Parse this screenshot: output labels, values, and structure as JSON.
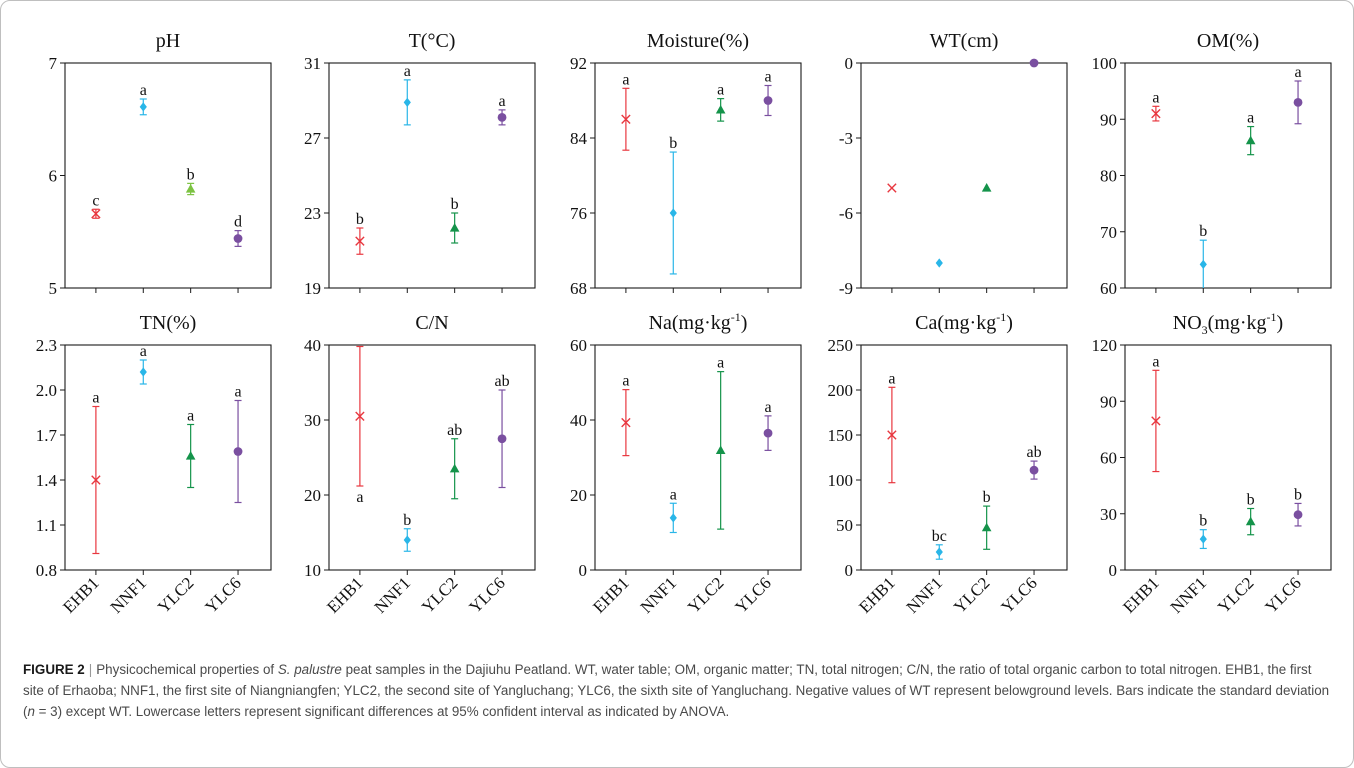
{
  "chart_data": [
    {
      "type": "scatter",
      "title": "pH",
      "title_sub": "",
      "ylim": [
        5,
        7
      ],
      "yticks": [
        5,
        6,
        7
      ],
      "ytick_labels": [
        "5",
        "6",
        "7"
      ],
      "categories": [
        "EHB1",
        "NNF1",
        "YLC2",
        "YLC6"
      ],
      "values": [
        5.66,
        6.61,
        5.88,
        5.44
      ],
      "errors": [
        0.04,
        0.07,
        0.05,
        0.07
      ],
      "letters": [
        "c",
        "a",
        "b",
        "d"
      ]
    },
    {
      "type": "scatter",
      "title": "T(°C)",
      "title_sub": "",
      "ylim": [
        19,
        31
      ],
      "yticks": [
        19,
        23,
        27,
        31
      ],
      "ytick_labels": [
        "19",
        "23",
        "27",
        "31"
      ],
      "categories": [
        "EHB1",
        "NNF1",
        "YLC2",
        "YLC6"
      ],
      "values": [
        21.5,
        28.9,
        22.2,
        28.1
      ],
      "errors": [
        0.7,
        1.2,
        0.8,
        0.4
      ],
      "letters": [
        "b",
        "a",
        "b",
        "a"
      ]
    },
    {
      "type": "scatter",
      "title": "Moisture(%)",
      "title_sub": "",
      "ylim": [
        68,
        92
      ],
      "yticks": [
        68,
        76,
        84,
        92
      ],
      "ytick_labels": [
        "68",
        "76",
        "84",
        "92"
      ],
      "categories": [
        "EHB1",
        "NNF1",
        "YLC2",
        "YLC6"
      ],
      "values": [
        86.0,
        76.0,
        87.0,
        88.0
      ],
      "errors": [
        3.3,
        6.5,
        1.2,
        1.6
      ],
      "letters": [
        "a",
        "b",
        "a",
        "a"
      ]
    },
    {
      "type": "scatter",
      "title": "WT(cm)",
      "title_sub": "",
      "ylim": [
        -9,
        0
      ],
      "yticks": [
        -9,
        -6,
        -3,
        0
      ],
      "ytick_labels": [
        "-9",
        "-6",
        "-3",
        "0"
      ],
      "categories": [
        "EHB1",
        "NNF1",
        "YLC2",
        "YLC6"
      ],
      "values": [
        -5,
        -8,
        -5,
        0
      ],
      "errors": [
        0,
        0,
        0,
        0
      ],
      "letters": [
        "",
        "",
        "",
        ""
      ]
    },
    {
      "type": "scatter",
      "title": "OM(%)",
      "title_sub": "",
      "ylim": [
        60,
        100
      ],
      "yticks": [
        60,
        70,
        80,
        90,
        100
      ],
      "ytick_labels": [
        "60",
        "70",
        "80",
        "90",
        "100"
      ],
      "categories": [
        "EHB1",
        "NNF1",
        "YLC2",
        "YLC6"
      ],
      "values": [
        91.0,
        64.2,
        86.2,
        93.0
      ],
      "errors": [
        1.3,
        4.3,
        2.5,
        3.8
      ],
      "letters": [
        "a",
        "b",
        "a",
        "a"
      ]
    },
    {
      "type": "scatter",
      "title": "TN(%)",
      "title_sub": "",
      "ylim": [
        0.8,
        2.3
      ],
      "yticks": [
        0.8,
        1.1,
        1.4,
        1.7,
        2.0,
        2.3
      ],
      "ytick_labels": [
        "0.8",
        "1.1",
        "1.4",
        "1.7",
        "2.0",
        "2.3"
      ],
      "categories": [
        "EHB1",
        "NNF1",
        "YLC2",
        "YLC6"
      ],
      "values": [
        1.4,
        2.12,
        1.56,
        1.59
      ],
      "errors": [
        0.49,
        0.08,
        0.21,
        0.34
      ],
      "letters": [
        "a",
        "a",
        "a",
        "a"
      ]
    },
    {
      "type": "scatter",
      "title": "C/N",
      "title_sub": "",
      "ylim": [
        10,
        40
      ],
      "yticks": [
        10,
        20,
        30,
        40
      ],
      "ytick_labels": [
        "10",
        "20",
        "30",
        "40"
      ],
      "categories": [
        "EHB1",
        "NNF1",
        "YLC2",
        "YLC6"
      ],
      "values": [
        30.5,
        14.0,
        23.5,
        27.5
      ],
      "errors": [
        9.3,
        1.5,
        4.0,
        6.5
      ],
      "letters": [
        "a",
        "b",
        "ab",
        "ab"
      ],
      "letter_below": [
        true,
        false,
        false,
        false
      ]
    },
    {
      "type": "scatter",
      "title": "Na(mg·kg",
      "title_sub": "-1",
      "ylim": [
        0,
        60
      ],
      "yticks": [
        0,
        20,
        40,
        60
      ],
      "ytick_labels": [
        "0",
        "20",
        "40",
        "60"
      ],
      "categories": [
        "EHB1",
        "NNF1",
        "YLC2",
        "YLC6"
      ],
      "values": [
        39.3,
        13.9,
        31.9,
        36.5
      ],
      "errors": [
        8.8,
        3.9,
        21.0,
        4.6
      ],
      "letters": [
        "a",
        "a",
        "a",
        "a"
      ]
    },
    {
      "type": "scatter",
      "title": "Ca(mg·kg",
      "title_sub": "-1",
      "ylim": [
        0,
        250
      ],
      "yticks": [
        0,
        50,
        100,
        150,
        200,
        250
      ],
      "ytick_labels": [
        "0",
        "50",
        "100",
        "150",
        "200",
        "250"
      ],
      "categories": [
        "EHB1",
        "NNF1",
        "YLC2",
        "YLC6"
      ],
      "values": [
        150,
        20,
        47,
        111
      ],
      "errors": [
        53,
        8,
        24,
        10
      ],
      "letters": [
        "a",
        "bc",
        "b",
        "ab"
      ]
    },
    {
      "type": "scatter",
      "title": "NO",
      "title_sub": "3",
      "title_tail": "(mg·kg",
      "title_sup": "-1",
      "ylim": [
        0,
        120
      ],
      "yticks": [
        0,
        30,
        60,
        90,
        120
      ],
      "ytick_labels": [
        "0",
        "30",
        "60",
        "90",
        "120"
      ],
      "categories": [
        "EHB1",
        "NNF1",
        "YLC2",
        "YLC6"
      ],
      "values": [
        79.5,
        16.5,
        25.8,
        29.5
      ],
      "errors": [
        27,
        5,
        7,
        6
      ],
      "letters": [
        "a",
        "b",
        "b",
        "b"
      ]
    }
  ],
  "series_style": {
    "EHB1": {
      "marker": "x",
      "color": "#e8373f"
    },
    "NNF1": {
      "marker": "diamond",
      "color": "#29b6e8"
    },
    "YLC2": {
      "marker": "triangle",
      "color": "#14934a"
    },
    "YLC6": {
      "marker": "circle",
      "color": "#7a4fa0"
    }
  },
  "ph_ylc2_color": "#7cc242",
  "caption": {
    "label": "FIGURE 2",
    "t1": "Physicochemical properties of ",
    "species": "S. palustre",
    "t2": " peat samples in the Dajiuhu Peatland. WT, water table; OM, organic matter; TN, total nitrogen; C/N, the ratio of total organic carbon to total nitrogen. EHB1, the first site of Erhaoba; NNF1, the first site of Niangniangfen; YLC2, the second site of Yangluchang; YLC6, the sixth site of Yangluchang. Negative values of WT represent belowground levels. Bars indicate the standard deviation (",
    "n": "n",
    "t3": " = 3) except WT. Lowercase letters represent significant differences at 95% confident interval as indicated by ANOVA."
  }
}
